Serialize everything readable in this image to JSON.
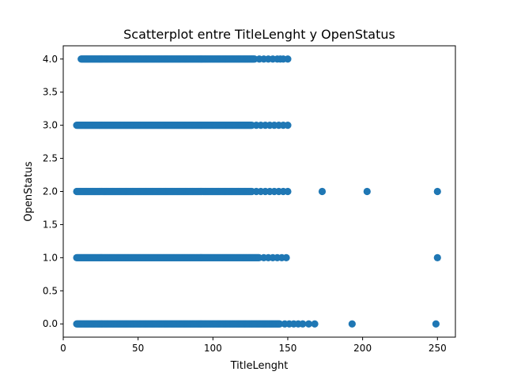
{
  "chart_data": {
    "type": "scatter",
    "title": "Scatterplot entre TitleLenght y OpenStatus",
    "xlabel": "TitleLenght",
    "ylabel": "OpenStatus",
    "xlim": [
      0,
      262
    ],
    "ylim": [
      -0.2,
      4.2
    ],
    "xticks": [
      0,
      50,
      100,
      150,
      200,
      250
    ],
    "yticks": [
      0.0,
      0.5,
      1.0,
      1.5,
      2.0,
      2.5,
      3.0,
      3.5,
      4.0
    ],
    "grid": false,
    "marker_color": "#1f77b4",
    "series": [
      {
        "dense_ranges": [
          {
            "y": 4.0,
            "x_start": 12,
            "x_end": 128
          },
          {
            "y": 3.0,
            "x_start": 9,
            "x_end": 126
          },
          {
            "y": 2.0,
            "x_start": 9,
            "x_end": 126
          },
          {
            "y": 1.0,
            "x_start": 9,
            "x_end": 131
          },
          {
            "y": 0.0,
            "x_start": 9,
            "x_end": 145
          }
        ],
        "points": [
          {
            "x": 131,
            "y": 4.0
          },
          {
            "x": 134,
            "y": 4.0
          },
          {
            "x": 137,
            "y": 4.0
          },
          {
            "x": 140,
            "y": 4.0
          },
          {
            "x": 143,
            "y": 4.0
          },
          {
            "x": 145,
            "y": 4.0
          },
          {
            "x": 147,
            "y": 4.0
          },
          {
            "x": 150,
            "y": 4.0
          },
          {
            "x": 129,
            "y": 3.0
          },
          {
            "x": 132,
            "y": 3.0
          },
          {
            "x": 135,
            "y": 3.0
          },
          {
            "x": 138,
            "y": 3.0
          },
          {
            "x": 141,
            "y": 3.0
          },
          {
            "x": 144,
            "y": 3.0
          },
          {
            "x": 147,
            "y": 3.0
          },
          {
            "x": 150,
            "y": 3.0
          },
          {
            "x": 129,
            "y": 2.0
          },
          {
            "x": 132,
            "y": 2.0
          },
          {
            "x": 135,
            "y": 2.0
          },
          {
            "x": 138,
            "y": 2.0
          },
          {
            "x": 141,
            "y": 2.0
          },
          {
            "x": 144,
            "y": 2.0
          },
          {
            "x": 147,
            "y": 2.0
          },
          {
            "x": 150,
            "y": 2.0
          },
          {
            "x": 173,
            "y": 2.0
          },
          {
            "x": 203,
            "y": 2.0
          },
          {
            "x": 250,
            "y": 2.0
          },
          {
            "x": 134,
            "y": 1.0
          },
          {
            "x": 137,
            "y": 1.0
          },
          {
            "x": 140,
            "y": 1.0
          },
          {
            "x": 143,
            "y": 1.0
          },
          {
            "x": 146,
            "y": 1.0
          },
          {
            "x": 149,
            "y": 1.0
          },
          {
            "x": 250,
            "y": 1.0
          },
          {
            "x": 148,
            "y": 0.0
          },
          {
            "x": 151,
            "y": 0.0
          },
          {
            "x": 154,
            "y": 0.0
          },
          {
            "x": 157,
            "y": 0.0
          },
          {
            "x": 160,
            "y": 0.0
          },
          {
            "x": 164,
            "y": 0.0
          },
          {
            "x": 168,
            "y": 0.0
          },
          {
            "x": 193,
            "y": 0.0
          },
          {
            "x": 249,
            "y": 0.0
          }
        ]
      }
    ]
  }
}
